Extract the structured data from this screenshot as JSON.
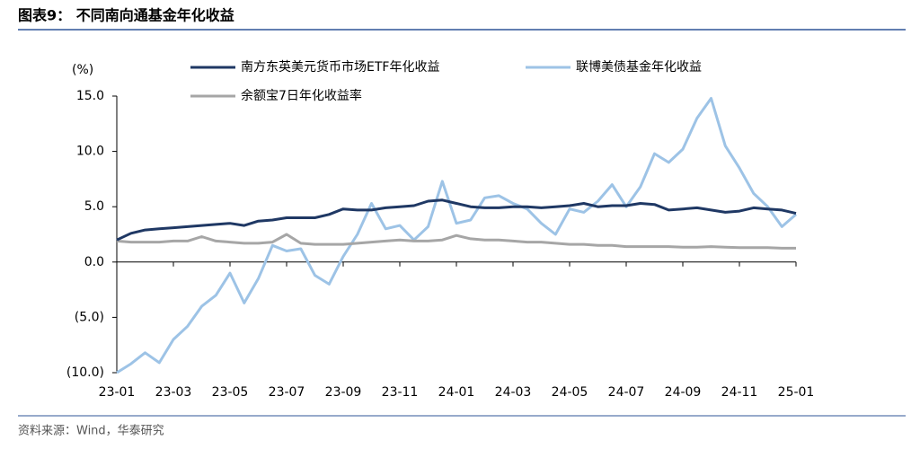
{
  "chart_data": {
    "type": "line",
    "title": "图表9：  不同南向通基金年化收益",
    "y_unit": "(%)",
    "source": "资料来源：Wind，华泰研究",
    "categories": [
      "23-01",
      null,
      null,
      null,
      "23-03",
      null,
      null,
      null,
      "23-05",
      null,
      null,
      null,
      "23-07",
      null,
      null,
      null,
      "23-09",
      null,
      null,
      null,
      "23-11",
      null,
      null,
      null,
      "24-01",
      null,
      null,
      null,
      "24-03",
      null,
      null,
      null,
      "24-05",
      null,
      null,
      null,
      "24-07",
      null,
      null,
      null,
      "24-09",
      null,
      null,
      null,
      "24-11",
      null,
      null,
      null,
      "25-01"
    ],
    "series": [
      {
        "name": "南方东英美元货币市场ETF年化收益",
        "color": "#1f3864",
        "values": [
          2.0,
          2.6,
          2.9,
          3.0,
          3.1,
          3.2,
          3.3,
          3.4,
          3.5,
          3.3,
          3.7,
          3.8,
          4.0,
          4.0,
          4.0,
          4.3,
          4.8,
          4.7,
          4.7,
          4.9,
          5.0,
          5.1,
          5.5,
          5.6,
          5.3,
          5.0,
          4.9,
          4.9,
          5.0,
          5.0,
          4.9,
          5.0,
          5.1,
          5.3,
          5.0,
          5.1,
          5.1,
          5.3,
          5.2,
          4.7,
          4.8,
          4.9,
          4.7,
          4.5,
          4.6,
          4.9,
          4.8,
          4.7,
          4.4
        ]
      },
      {
        "name": "联博美债基金年化收益",
        "color": "#9dc3e6",
        "values": [
          -10.0,
          -9.2,
          -8.2,
          -9.1,
          -7.0,
          -5.8,
          -4.0,
          -3.0,
          -1.0,
          -3.7,
          -1.5,
          1.5,
          1.0,
          1.2,
          -1.2,
          -2.0,
          0.5,
          2.5,
          5.3,
          3.0,
          3.3,
          2.0,
          3.2,
          7.3,
          3.5,
          3.8,
          5.8,
          6.0,
          5.3,
          4.8,
          3.5,
          2.5,
          4.8,
          4.5,
          5.5,
          7.0,
          5.0,
          6.8,
          9.8,
          9.0,
          10.2,
          13.0,
          14.8,
          10.5,
          8.5,
          6.2,
          5.0,
          3.2,
          4.3
        ]
      },
      {
        "name": "余额宝7日年化收益率",
        "color": "#a6a6a6",
        "values": [
          1.9,
          1.8,
          1.8,
          1.8,
          1.9,
          1.9,
          2.3,
          1.9,
          1.8,
          1.7,
          1.7,
          1.8,
          2.5,
          1.7,
          1.6,
          1.6,
          1.6,
          1.7,
          1.8,
          1.9,
          2.0,
          1.9,
          1.9,
          2.0,
          2.4,
          2.1,
          2.0,
          2.0,
          1.9,
          1.8,
          1.8,
          1.7,
          1.6,
          1.6,
          1.5,
          1.5,
          1.4,
          1.4,
          1.4,
          1.4,
          1.35,
          1.35,
          1.4,
          1.35,
          1.3,
          1.3,
          1.3,
          1.25,
          1.25
        ]
      }
    ],
    "ylim": [
      -10,
      15
    ],
    "yticks": [
      {
        "value": 15,
        "label": "15.0"
      },
      {
        "value": 10,
        "label": "10.0"
      },
      {
        "value": 5,
        "label": "5.0"
      },
      {
        "value": 0,
        "label": "0.0"
      },
      {
        "value": -5,
        "label": "(5.0)"
      },
      {
        "value": -10,
        "label": "(10.0)"
      }
    ],
    "grid": false,
    "legend": "top"
  }
}
